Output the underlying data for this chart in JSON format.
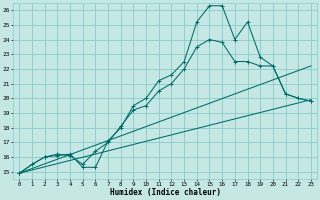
{
  "xlabel": "Humidex (Indice chaleur)",
  "xlim": [
    -0.5,
    23.5
  ],
  "ylim": [
    14.5,
    26.5
  ],
  "xticks": [
    0,
    1,
    2,
    3,
    4,
    5,
    6,
    7,
    8,
    9,
    10,
    11,
    12,
    13,
    14,
    15,
    16,
    17,
    18,
    19,
    20,
    21,
    22,
    23
  ],
  "yticks": [
    15,
    16,
    17,
    18,
    19,
    20,
    21,
    22,
    23,
    24,
    25,
    26
  ],
  "bg_color": "#c5e8e4",
  "grid_color": "#88ccc8",
  "line_color": "#006b6b",
  "line1_x": [
    0,
    1,
    2,
    3,
    4,
    5,
    6,
    7,
    8,
    9,
    10,
    11,
    12,
    13,
    14,
    15,
    16,
    17,
    18,
    19,
    20,
    21,
    22,
    23
  ],
  "line1_y": [
    14.9,
    15.5,
    16.0,
    16.1,
    16.2,
    15.3,
    15.3,
    17.1,
    18.0,
    19.5,
    20.0,
    21.2,
    21.6,
    22.5,
    25.2,
    26.3,
    26.3,
    24.0,
    25.2,
    22.8,
    22.2,
    20.3,
    20.0,
    19.8
  ],
  "line2_x": [
    0,
    1,
    2,
    3,
    4,
    5,
    6,
    7,
    8,
    9,
    10,
    11,
    12,
    13,
    14,
    15,
    16,
    17,
    18,
    19,
    20,
    21,
    22,
    23
  ],
  "line2_y": [
    14.9,
    15.5,
    16.0,
    16.2,
    16.1,
    15.5,
    16.4,
    17.0,
    18.1,
    19.2,
    19.5,
    20.5,
    21.0,
    22.0,
    23.5,
    24.0,
    23.8,
    22.5,
    22.5,
    22.2,
    22.2,
    20.3,
    20.0,
    19.8
  ],
  "line3_x": [
    0,
    23
  ],
  "line3_y": [
    14.9,
    22.2
  ],
  "line4_x": [
    0,
    23
  ],
  "line4_y": [
    14.9,
    19.9
  ]
}
